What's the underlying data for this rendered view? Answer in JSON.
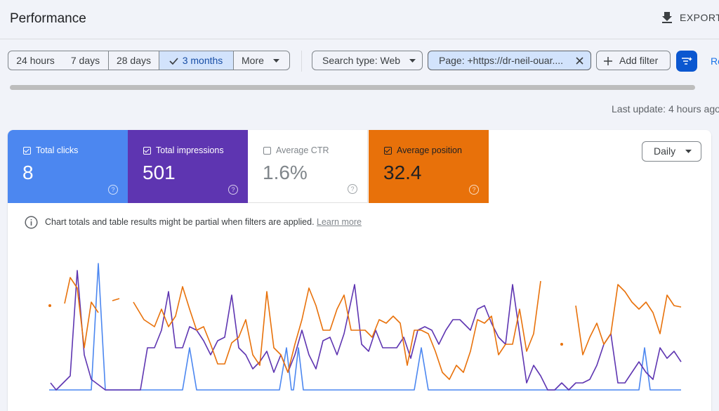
{
  "header": {
    "title": "Performance",
    "export": "EXPORT"
  },
  "filters": {
    "ranges": [
      "24 hours",
      "7 days",
      "28 days",
      "3 months",
      "More"
    ],
    "search_type": "Search type: Web",
    "page": "Page: +https://dr-neil-ouar....",
    "add_filter": "Add filter",
    "cut_button": "Re"
  },
  "last_update": "Last update: 4 hours ago",
  "metrics": [
    {
      "label": "Total clicks",
      "value": "8"
    },
    {
      "label": "Total impressions",
      "value": "501"
    },
    {
      "label": "Average CTR",
      "value": "1.6%"
    },
    {
      "label": "Average position",
      "value": "32.4"
    }
  ],
  "granularity": "Daily",
  "notice": {
    "text": "Chart totals and table results might be partial when filters are applied.",
    "link": "Learn more"
  }
}
